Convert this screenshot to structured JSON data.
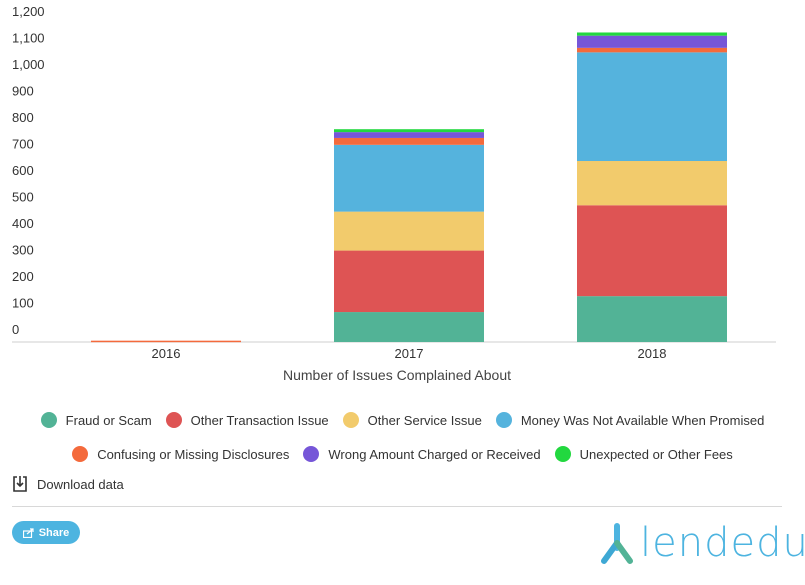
{
  "chart_data": {
    "type": "bar",
    "stacked": true,
    "categories": [
      "2016",
      "2017",
      "2018"
    ],
    "xlabel": "Number of Issues Complained About",
    "ylabel": "",
    "ylim": [
      0,
      1200
    ],
    "yticks": [
      0,
      100,
      200,
      300,
      400,
      500,
      600,
      700,
      800,
      900,
      1000,
      1100,
      1200
    ],
    "ytick_labels": [
      "0",
      "100",
      "200",
      "300",
      "400",
      "500",
      "600",
      "700",
      "800",
      "900",
      "1,000",
      "1,100",
      "1,200"
    ],
    "grid": false,
    "legend_position": "bottom",
    "series": [
      {
        "name": "Fraud or Scam",
        "color": "#52b396",
        "values": [
          0,
          113,
          173
        ]
      },
      {
        "name": "Other Transaction Issue",
        "color": "#de5454",
        "values": [
          0,
          232,
          343
        ]
      },
      {
        "name": "Other Service Issue",
        "color": "#f2cb6c",
        "values": [
          0,
          147,
          167
        ]
      },
      {
        "name": "Money Was Not Available When Promised",
        "color": "#55b3dd",
        "values": [
          0,
          252,
          410
        ]
      },
      {
        "name": "Confusing or Missing Disclosures",
        "color": "#f46a3c",
        "values": [
          5,
          26,
          17
        ]
      },
      {
        "name": "Wrong Amount Charged or Received",
        "color": "#7656d8",
        "values": [
          0,
          22,
          46
        ]
      },
      {
        "name": "Unexpected or Other Fees",
        "color": "#22d83f",
        "values": [
          0,
          11,
          12
        ]
      }
    ]
  },
  "footer": {
    "download_label": "Download data",
    "share_label": "Share",
    "logo_text": "lendedu"
  }
}
